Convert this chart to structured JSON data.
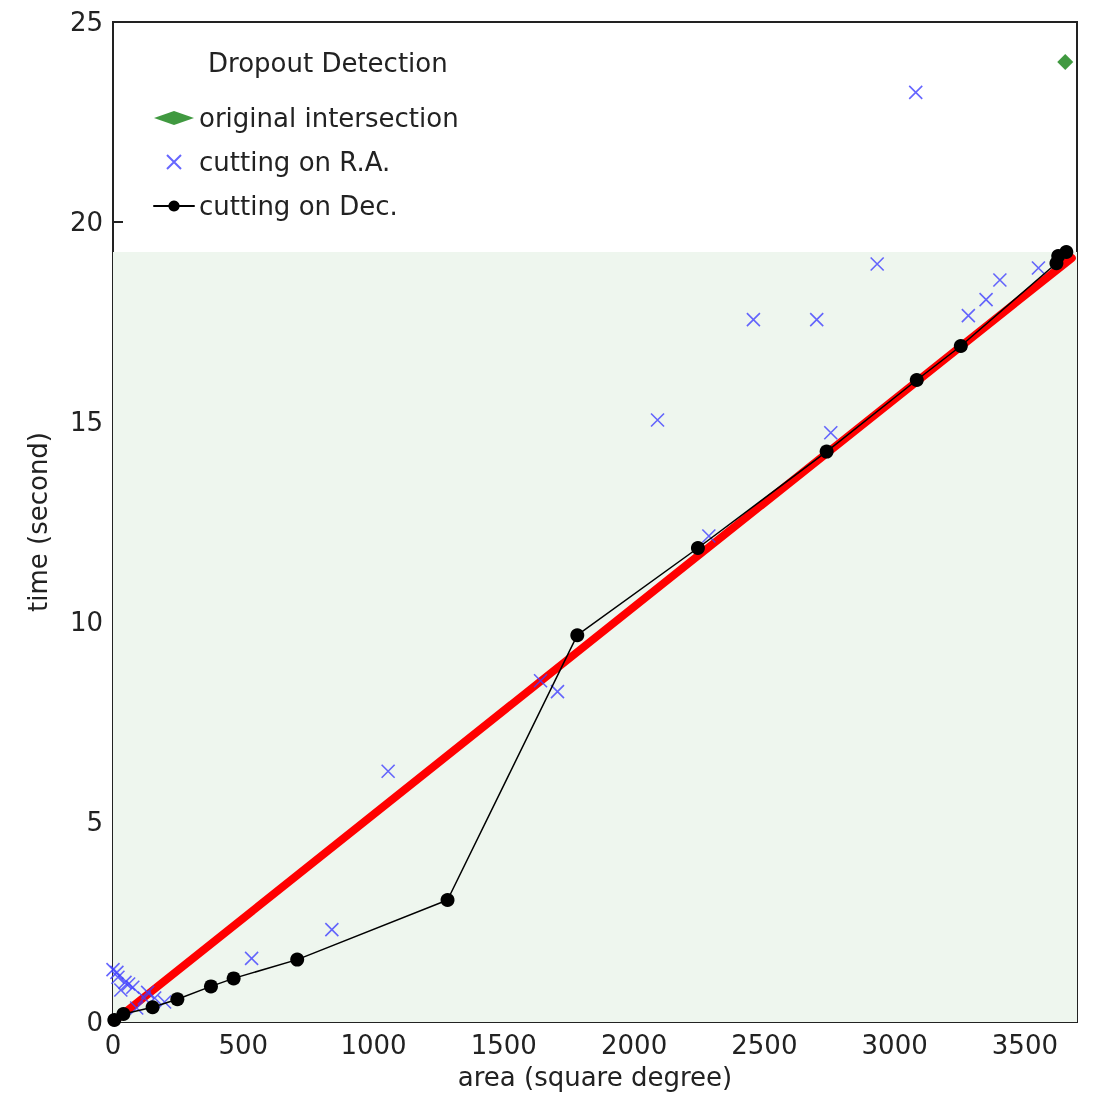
{
  "chart_data": {
    "type": "scatter",
    "xlabel": "area (square degree)",
    "ylabel": "time (second)",
    "legend_title": "Dropout Detection",
    "legend": "top left",
    "grid": false,
    "xlim": [
      0,
      3700
    ],
    "xticks": [
      0,
      500,
      1000,
      1500,
      2000,
      2500,
      3000,
      3500
    ],
    "ylim": [
      0,
      25
    ],
    "yticks": [
      0,
      5,
      10,
      15,
      20,
      25
    ],
    "bands": [
      {
        "axis": "y",
        "from": 0,
        "to": 19.25,
        "color": "#eef6ee"
      }
    ],
    "series": [
      {
        "name": "original intersection",
        "marker": "diamond",
        "color": "#108010",
        "x": [
          3655
        ],
        "values": [
          24.0
        ]
      },
      {
        "name": "cutting on R.A.",
        "marker": "cross",
        "color": "#4040ff",
        "x": [
          0,
          15,
          19,
          46,
          76,
          133,
          160,
          198,
          91,
          30,
          60,
          120,
          532,
          840,
          1056,
          1641,
          1706,
          2090,
          2287,
          2458,
          2701,
          2755,
          2933,
          3081,
          3283,
          3351,
          3404,
          3552
        ],
        "values": [
          1.31,
          1.24,
          1.12,
          0.99,
          0.87,
          0.74,
          0.6,
          0.5,
          0.35,
          0.8,
          0.95,
          0.6,
          1.59,
          2.31,
          6.27,
          8.53,
          8.26,
          15.05,
          12.15,
          17.56,
          17.56,
          14.73,
          18.95,
          23.24,
          17.66,
          18.06,
          18.55,
          18.85
        ]
      },
      {
        "name": "cutting on Dec.",
        "type": "line",
        "marker": "circle",
        "line_style": "solid",
        "color": "#000000",
        "x": [
          5,
          40,
          152,
          247,
          376,
          463,
          707,
          1284,
          1782,
          2245,
          2739,
          3085,
          3254,
          3621,
          3628,
          3659
        ],
        "values": [
          0.05,
          0.2,
          0.37,
          0.57,
          0.89,
          1.09,
          1.56,
          3.05,
          9.67,
          11.85,
          14.26,
          16.05,
          16.9,
          18.97,
          19.15,
          19.25
        ]
      },
      {
        "type": "line",
        "marker": "none",
        "line_style": "solid",
        "color": "#ff0000",
        "x": [
          0,
          3680
        ],
        "values": [
          0,
          19.1
        ]
      }
    ]
  }
}
